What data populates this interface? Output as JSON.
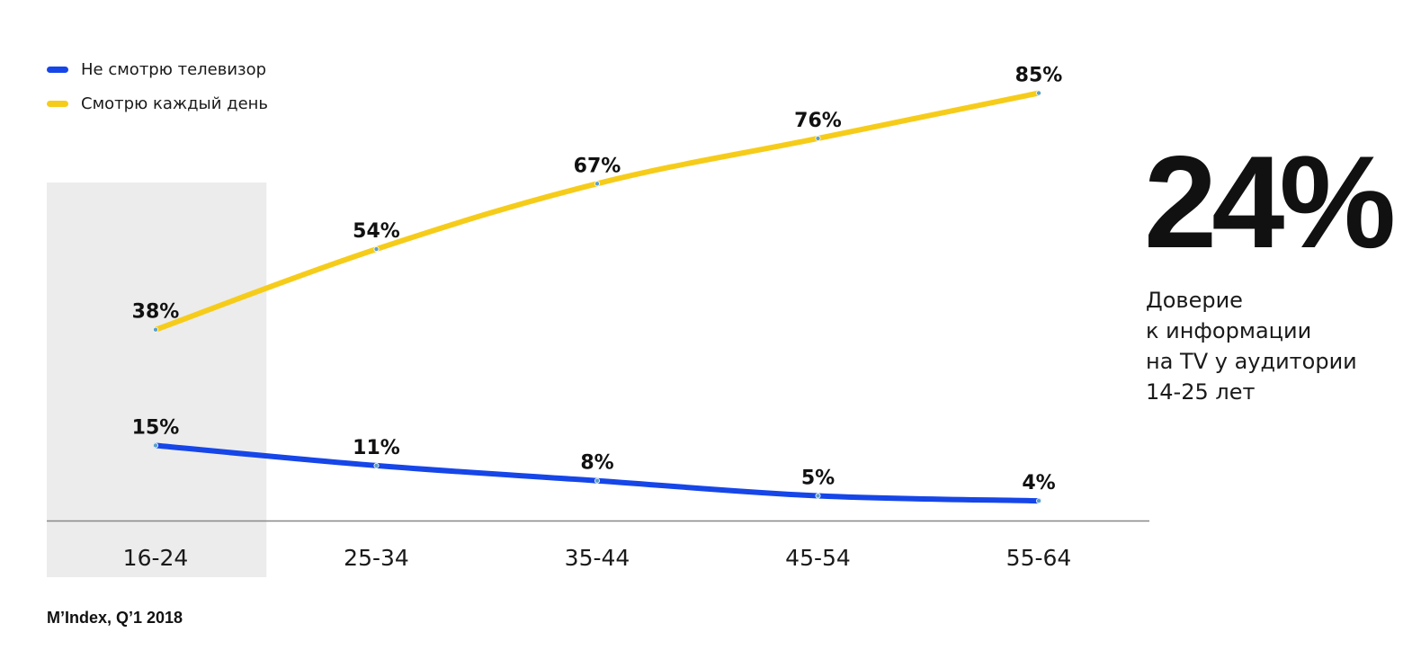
{
  "legend": {
    "items": [
      {
        "label": "Не смотрю телевизор",
        "color": "#1646e8"
      },
      {
        "label": "Смотрю каждый день",
        "color": "#f6cc1a"
      }
    ]
  },
  "highlight": {
    "value": "24%",
    "description_lines": [
      "Доверие",
      "к информации",
      "на TV у аудитории",
      "14-25 лет"
    ]
  },
  "source": "M’Index, Q’1 2018",
  "chart_data": {
    "type": "line",
    "categories": [
      "16-24",
      "25-34",
      "35-44",
      "45-54",
      "55-64"
    ],
    "highlighted_category": "16-24",
    "series": [
      {
        "name": "Смотрю каждый день",
        "color": "#f6cc1a",
        "values": [
          38,
          54,
          67,
          76,
          85
        ],
        "labels": [
          "38%",
          "54%",
          "67%",
          "76%",
          "85%"
        ]
      },
      {
        "name": "Не смотрю телевизор",
        "color": "#1646e8",
        "values": [
          15,
          11,
          8,
          5,
          4
        ],
        "labels": [
          "15%",
          "11%",
          "8%",
          "5%",
          "4%"
        ]
      }
    ],
    "ylim": [
      0,
      100
    ],
    "grid": false,
    "legend_position": "top-left",
    "colors": {
      "baseline": "#888888",
      "highlight_bg": "#ececec"
    }
  }
}
